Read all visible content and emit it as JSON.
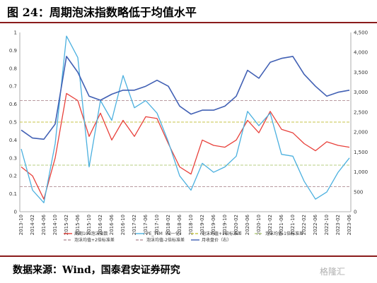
{
  "title": "图 24：周期泡沫指数略低于均值水平",
  "source": "数据来源：Wind，国泰君安证券研究",
  "watermark": "格隆汇",
  "chart_data": {
    "type": "line",
    "x": [
      "2013-10",
      "2014-02",
      "2014-06",
      "2014-10",
      "2015-02",
      "2015-06",
      "2015-10",
      "2016-02",
      "2016-06",
      "2016-10",
      "2017-02",
      "2017-06",
      "2017-10",
      "2018-02",
      "2018-06",
      "2018-10",
      "2019-02",
      "2019-06",
      "2019-10",
      "2020-02",
      "2020-06",
      "2020-10",
      "2021-02",
      "2021-06",
      "2021-10",
      "2022-02",
      "2022-06",
      "2022-10",
      "2023-02",
      "2023-06"
    ],
    "ylim": [
      0,
      1
    ],
    "y2lim": [
      0,
      4500
    ],
    "yticks": [
      "0",
      "0.1",
      "0.2",
      "0.3",
      "0.4",
      "0.5",
      "0.6",
      "0.7",
      "0.8",
      "0.9",
      "1"
    ],
    "y2ticks": [
      "0",
      "500",
      "1,000",
      "1,500",
      "2,000",
      "2,500",
      "3,000",
      "3,500",
      "4,000",
      "4,500"
    ],
    "grid": false,
    "legend_position": "bottom",
    "series": [
      {
        "name": "周期100泡沫指数",
        "axis": "left",
        "color": "#e8403a",
        "values": [
          0.25,
          0.2,
          0.07,
          0.3,
          0.66,
          0.62,
          0.42,
          0.55,
          0.4,
          0.51,
          0.42,
          0.53,
          0.52,
          0.38,
          0.25,
          0.21,
          0.4,
          0.37,
          0.36,
          0.4,
          0.51,
          0.44,
          0.56,
          0.46,
          0.44,
          0.38,
          0.34,
          0.39,
          0.37,
          0.36
        ]
      },
      {
        "name": "PE_TTM（归一化）",
        "axis": "left",
        "color": "#4bb0df",
        "values": [
          0.35,
          0.12,
          0.05,
          0.38,
          0.98,
          0.86,
          0.25,
          0.62,
          0.51,
          0.76,
          0.58,
          0.62,
          0.55,
          0.39,
          0.2,
          0.12,
          0.27,
          0.22,
          0.25,
          0.31,
          0.56,
          0.48,
          0.55,
          0.32,
          0.31,
          0.17,
          0.07,
          0.11,
          0.22,
          0.3
        ]
      },
      {
        "name": "月收盘价（右）",
        "axis": "right",
        "color": "#4160b4",
        "values": [
          2050,
          1850,
          1820,
          2200,
          3900,
          3500,
          2900,
          2800,
          2950,
          3050,
          3050,
          3150,
          3300,
          3150,
          2650,
          2450,
          2550,
          2550,
          2650,
          2900,
          3550,
          3350,
          3750,
          3850,
          3900,
          3450,
          3150,
          2900,
          3000,
          3050
        ]
      },
      {
        "name": "泡沫均值+2倍标准差",
        "axis": "left",
        "color": "#b89aa0",
        "dash": "4,2",
        "constant": 0.62
      },
      {
        "name": "泡沫均值+1倍标准差",
        "axis": "left",
        "color": "#c7c64a",
        "dash": "4,2",
        "constant": 0.5
      },
      {
        "name": "泡沫均值-1倍标准差",
        "axis": "left",
        "color": "#b7cf83",
        "dash": "4,2",
        "constant": 0.26
      },
      {
        "name": "泡沫均值-2倍标准差",
        "axis": "left",
        "color": "#b89aa0",
        "dash": "4,2",
        "constant": 0.14
      }
    ]
  }
}
